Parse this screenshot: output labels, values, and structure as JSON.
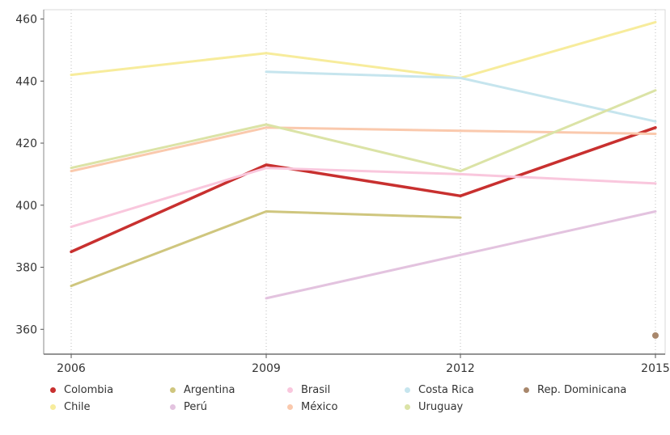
{
  "chart_data": {
    "type": "line",
    "title": "",
    "xlabel": "",
    "ylabel": "",
    "x": [
      2006,
      2009,
      2012,
      2015
    ],
    "x_tick_labels": [
      "2006",
      "2009",
      "2012",
      "2015"
    ],
    "ylim": [
      352,
      463
    ],
    "y_ticks": [
      360,
      380,
      400,
      420,
      440,
      460
    ],
    "y_tick_labels": [
      "360",
      "380",
      "400",
      "420",
      "440",
      "460"
    ],
    "grid": "vertical dotted",
    "legend_position": "bottom",
    "series": [
      {
        "name": "Colombia",
        "color": "#c8302f",
        "values": [
          385,
          413,
          403,
          425
        ]
      },
      {
        "name": "Chile",
        "color": "#f7ec9c",
        "values": [
          442,
          449,
          441,
          459
        ]
      },
      {
        "name": "Argentina",
        "color": "#cfc67e",
        "values": [
          374,
          398,
          396,
          null
        ]
      },
      {
        "name": "Perú",
        "color": "#e3c3df",
        "values": [
          null,
          370,
          null,
          398
        ]
      },
      {
        "name": "Brasil",
        "color": "#f9c7dd",
        "values": [
          393,
          412,
          410,
          407
        ]
      },
      {
        "name": "México",
        "color": "#fac9ad",
        "values": [
          411,
          425,
          424,
          423
        ]
      },
      {
        "name": "Costa Rica",
        "color": "#c6e5ee",
        "values": [
          null,
          443,
          441,
          427
        ]
      },
      {
        "name": "Uruguay",
        "color": "#dbe3a6",
        "values": [
          412,
          426,
          411,
          437
        ]
      },
      {
        "name": "Rep. Dominicana",
        "color": "#a8876c",
        "values": [
          null,
          null,
          null,
          358
        ]
      }
    ]
  },
  "legend": {
    "items": [
      {
        "label": "Colombia",
        "color": "#c8302f"
      },
      {
        "label": "Argentina",
        "color": "#cfc67e"
      },
      {
        "label": "Brasil",
        "color": "#f9c7dd"
      },
      {
        "label": "Costa Rica",
        "color": "#c6e5ee"
      },
      {
        "label": "Rep. Dominicana",
        "color": "#a8876c"
      },
      {
        "label": "Chile",
        "color": "#f7ec9c"
      },
      {
        "label": "Perú",
        "color": "#e3c3df"
      },
      {
        "label": "México",
        "color": "#fac9ad"
      },
      {
        "label": "Uruguay",
        "color": "#dbe3a6"
      }
    ]
  }
}
